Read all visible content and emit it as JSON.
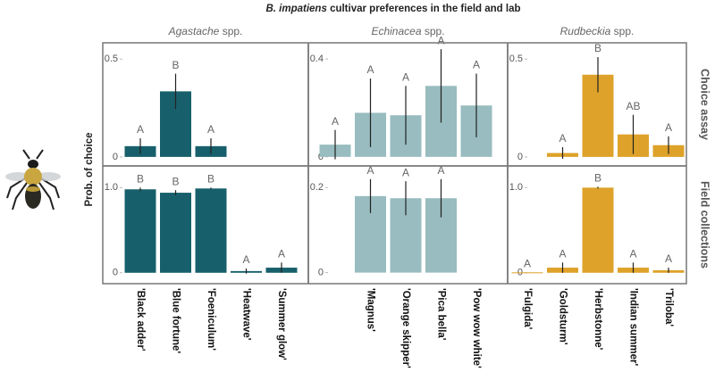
{
  "title": {
    "italic": "B. impatiens",
    "text": "cultivar preferences in the field and lab"
  },
  "ylabel": "Prob. of choice",
  "rows": [
    "Choice assay",
    "Field collections"
  ],
  "columns": [
    {
      "genus": "Agastache",
      "suffix": "spp.",
      "categories": [
        "'Black adder'",
        "'Blue fortune'",
        "'Foeniculum'",
        "'Heatwave'",
        "'Summer glow'"
      ]
    },
    {
      "genus": "Echinacea",
      "suffix": "spp.",
      "categories": [
        null,
        "'Magnus'",
        "'Orange skipper'",
        "'Pica bella'",
        "'Pow wow white'"
      ]
    },
    {
      "genus": "Rudbeckia",
      "suffix": "spp.",
      "categories": [
        "'Fulgida'",
        "'Goldsturm'",
        "'Herbstonne'",
        "'Indian summer'",
        "'Triloba'"
      ]
    }
  ],
  "chart_data": [
    {
      "type": "bar",
      "color": "#17606b",
      "values": [
        0.055,
        0.335,
        0.055,
        null,
        null
      ],
      "errors": [
        0.04,
        0.09,
        0.04,
        null,
        null
      ],
      "letters": [
        "A",
        "B",
        "A",
        null,
        null
      ],
      "ylim": [
        -0.046,
        0.583
      ],
      "yticks": [
        0,
        0.5
      ]
    },
    {
      "type": "bar",
      "color": "#98bcbf",
      "values": [
        0.05,
        0.18,
        0.17,
        0.29,
        0.21
      ],
      "errors": [
        0.06,
        0.14,
        0.12,
        0.15,
        0.13
      ],
      "letters": [
        "A",
        "A",
        "A",
        "A",
        "A"
      ],
      "ylim": [
        -0.037,
        0.466
      ],
      "yticks": [
        0,
        0.4
      ]
    },
    {
      "type": "bar",
      "color": "#dea22a",
      "values": [
        null,
        0.02,
        0.42,
        0.115,
        0.06
      ],
      "errors": [
        null,
        0.03,
        0.09,
        0.1,
        0.045
      ],
      "letters": [
        null,
        "A",
        "B",
        "AB",
        "A"
      ],
      "ylim": [
        -0.046,
        0.583
      ],
      "yticks": [
        0,
        0.5
      ]
    },
    {
      "type": "bar",
      "color": "#17606b",
      "values": [
        0.98,
        0.94,
        0.99,
        0.02,
        0.06
      ],
      "errors": [
        0.02,
        0.03,
        0.01,
        0.03,
        0.06
      ],
      "letters": [
        "B",
        "B",
        "B",
        "A",
        "A"
      ],
      "ylim": [
        -0.128,
        1.255
      ],
      "yticks": [
        0,
        {
          "value": 1,
          "label": "1.0"
        }
      ]
    },
    {
      "type": "bar",
      "color": "#98bcbf",
      "values": [
        null,
        0.18,
        0.175,
        0.175,
        null
      ],
      "errors": [
        null,
        0.04,
        0.04,
        0.045,
        null
      ],
      "letters": [
        null,
        "A",
        "A",
        "A",
        null
      ],
      "ylim": [
        -0.026,
        0.251
      ],
      "yticks": [
        0,
        0.2
      ]
    },
    {
      "type": "bar",
      "color": "#dea22a",
      "values": [
        0.005,
        0.06,
        1.0,
        0.06,
        0.03
      ],
      "errors": [
        null,
        0.06,
        0.01,
        0.06,
        0.03
      ],
      "letters": [
        "A",
        "A",
        "B",
        "A",
        "A"
      ],
      "ylim": [
        -0.128,
        1.255
      ],
      "yticks": [
        0,
        {
          "value": 1,
          "label": "1.0"
        }
      ]
    }
  ]
}
